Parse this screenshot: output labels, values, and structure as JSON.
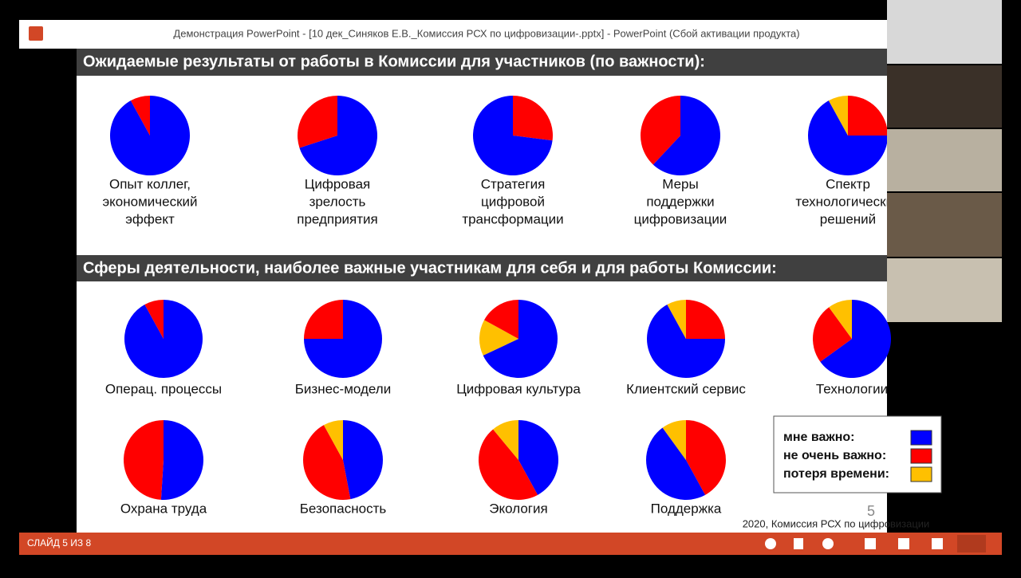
{
  "window": {
    "title": "Демонстрация PowerPoint - [10 дек_Синяков Е.В._Комиссия РСХ по цифровизации-.pptx] - PowerPoint (Сбой активации продукта)",
    "status": "СЛАЙД 5 ИЗ 8"
  },
  "slide": {
    "heading1": "Ожидаемые результаты от работы в Комиссии для участников (по важности):",
    "heading2": "Сферы деятельности, наиболее важные участникам для себя и для работы Комиссии:",
    "number": "5",
    "footer": "2020, Комиссия РСХ по цифровизации",
    "legend": [
      {
        "label": "мне важно:",
        "color": "#0000ff"
      },
      {
        "label": "не очень важно:",
        "color": "#ff0000"
      },
      {
        "label": "потеря времени:",
        "color": "#ffc000"
      }
    ],
    "pies": [
      {
        "label": [
          "Опыт коллег,",
          "экономический",
          "эффект"
        ],
        "slices": [
          {
            "color": "#0000ff",
            "value": 92
          },
          {
            "color": "#ff0000",
            "value": 8
          }
        ]
      },
      {
        "label": [
          "Цифровая",
          "зрелость",
          "предприятия"
        ],
        "slices": [
          {
            "color": "#0000ff",
            "value": 70
          },
          {
            "color": "#ff0000",
            "value": 30
          }
        ]
      },
      {
        "label": [
          "Стратегия",
          "цифровой",
          "трансформации"
        ],
        "slices": [
          {
            "color": "#ff0000",
            "value": 27
          },
          {
            "color": "#0000ff",
            "value": 73
          }
        ]
      },
      {
        "label": [
          "Меры",
          "поддержки",
          "цифровизации"
        ],
        "slices": [
          {
            "color": "#0000ff",
            "value": 62
          },
          {
            "color": "#ff0000",
            "value": 38
          }
        ]
      },
      {
        "label": [
          "Спектр",
          "технологических",
          "решений"
        ],
        "slices": [
          {
            "color": "#ff0000",
            "value": 25
          },
          {
            "color": "#0000ff",
            "value": 67
          },
          {
            "color": "#ffc000",
            "value": 8
          }
        ]
      },
      {
        "label": [
          "Операц. процессы"
        ],
        "slices": [
          {
            "color": "#0000ff",
            "value": 92
          },
          {
            "color": "#ff0000",
            "value": 8
          }
        ]
      },
      {
        "label": [
          "Бизнес-модели"
        ],
        "slices": [
          {
            "color": "#0000ff",
            "value": 75
          },
          {
            "color": "#ff0000",
            "value": 25
          }
        ]
      },
      {
        "label": [
          "Цифровая культура"
        ],
        "slices": [
          {
            "color": "#0000ff",
            "value": 68
          },
          {
            "color": "#ffc000",
            "value": 15
          },
          {
            "color": "#ff0000",
            "value": 17
          }
        ]
      },
      {
        "label": [
          "Клиентский сервис"
        ],
        "slices": [
          {
            "color": "#ff0000",
            "value": 25
          },
          {
            "color": "#0000ff",
            "value": 67
          },
          {
            "color": "#ffc000",
            "value": 8
          }
        ]
      },
      {
        "label": [
          "Технологии"
        ],
        "slices": [
          {
            "color": "#0000ff",
            "value": 65
          },
          {
            "color": "#ff0000",
            "value": 25
          },
          {
            "color": "#ffc000",
            "value": 10
          }
        ]
      },
      {
        "label": [
          "Охрана труда"
        ],
        "slices": [
          {
            "color": "#0000ff",
            "value": 51
          },
          {
            "color": "#ff0000",
            "value": 49
          }
        ]
      },
      {
        "label": [
          "Безопасность"
        ],
        "slices": [
          {
            "color": "#0000ff",
            "value": 47
          },
          {
            "color": "#ff0000",
            "value": 45
          },
          {
            "color": "#ffc000",
            "value": 8
          }
        ]
      },
      {
        "label": [
          "Экология"
        ],
        "slices": [
          {
            "color": "#0000ff",
            "value": 42
          },
          {
            "color": "#ff0000",
            "value": 47
          },
          {
            "color": "#ffc000",
            "value": 11
          }
        ]
      },
      {
        "label": [
          "Поддержка"
        ],
        "slices": [
          {
            "color": "#ff0000",
            "value": 42
          },
          {
            "color": "#0000ff",
            "value": 48
          },
          {
            "color": "#ffc000",
            "value": 10
          }
        ]
      }
    ]
  }
}
